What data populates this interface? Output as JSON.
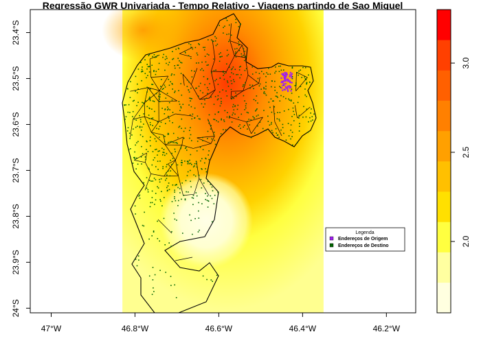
{
  "title": "Regressão GWR Univariada - Tempo Relativo - Viagens partindo de Sao Miguel",
  "x_ticks": [
    {
      "value": -47.0,
      "label": "47°W"
    },
    {
      "value": -46.8,
      "label": "46.8°W"
    },
    {
      "value": -46.6,
      "label": "46.6°W"
    },
    {
      "value": -46.4,
      "label": "46.4°W"
    },
    {
      "value": -46.2,
      "label": "46.2°W"
    }
  ],
  "y_ticks": [
    {
      "value": -23.4,
      "label": "23.4°S"
    },
    {
      "value": -23.5,
      "label": "23.5°S"
    },
    {
      "value": -23.6,
      "label": "23.6°S"
    },
    {
      "value": -23.7,
      "label": "23.7°S"
    },
    {
      "value": -23.8,
      "label": "23.8°S"
    },
    {
      "value": -23.9,
      "label": "23.9°S"
    },
    {
      "value": -24.0,
      "label": "24°S"
    }
  ],
  "legend": {
    "title": "Legenda",
    "items": [
      {
        "label": "Endereços de Origem",
        "color": "#a020f0"
      },
      {
        "label": "Endereços de Destino",
        "color": "#006400"
      }
    ]
  },
  "colorbar": {
    "min": 1.6,
    "max": 3.3,
    "colors": [
      "#ffffe0",
      "#ffffa0",
      "#ffff40",
      "#ffe000",
      "#ffc000",
      "#ffa000",
      "#ff8000",
      "#ff6000",
      "#ff4000",
      "#ff0000"
    ],
    "ticks": [
      {
        "value": 2.0,
        "label": "2.0"
      },
      {
        "value": 2.5,
        "label": "2.5"
      },
      {
        "value": 3.0,
        "label": "3.0"
      }
    ]
  },
  "chart_data": {
    "type": "heatmap",
    "title": "Regressão GWR Univariada - Tempo Relativo - Viagens partindo de Sao Miguel",
    "xlim": [
      -47.05,
      -46.13
    ],
    "ylim": [
      -24.01,
      -23.35
    ],
    "raster_extent": {
      "lon": [
        -46.83,
        -46.35
      ],
      "lat": [
        -24.01,
        -23.35
      ]
    },
    "surface_peaks": [
      {
        "lon": -46.4,
        "lat": -23.52,
        "value": 3.2
      },
      {
        "lon": -46.63,
        "lat": -23.81,
        "value": 1.65
      }
    ]
  }
}
